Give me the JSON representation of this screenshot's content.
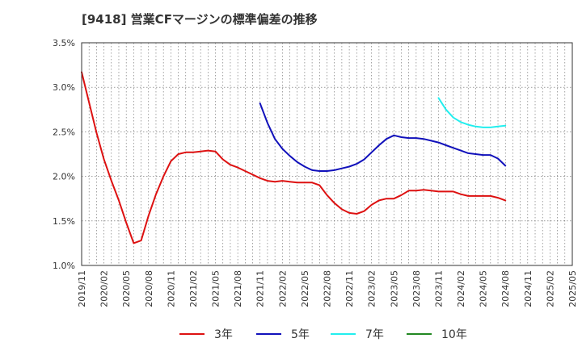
{
  "chart_data": {
    "type": "line",
    "title": "[9418]  営業CFマージンの標準偏差の推移",
    "xlabel": "",
    "ylabel": "",
    "ylim": [
      1.0,
      3.5
    ],
    "yticks": [
      1.0,
      1.5,
      2.0,
      2.5,
      3.0,
      3.5
    ],
    "ytick_labels": [
      "1.0%",
      "1.5%",
      "2.0%",
      "2.5%",
      "3.0%",
      "3.5%"
    ],
    "x_range": [
      "2019/11",
      "2025/05"
    ],
    "xtick_labels": [
      "2019/11",
      "2020/02",
      "2020/05",
      "2020/08",
      "2020/11",
      "2021/02",
      "2021/05",
      "2021/08",
      "2021/11",
      "2022/02",
      "2022/05",
      "2022/08",
      "2022/11",
      "2023/02",
      "2023/05",
      "2023/08",
      "2023/11",
      "2024/02",
      "2024/05",
      "2024/08",
      "2024/11",
      "2025/02",
      "2025/05"
    ],
    "grid": true,
    "legend_position": "bottom",
    "series": [
      {
        "name": "3年",
        "color": "#dd1111",
        "x": [
          "2019/11",
          "2019/12",
          "2020/01",
          "2020/02",
          "2020/03",
          "2020/04",
          "2020/05",
          "2020/06",
          "2020/07",
          "2020/08",
          "2020/09",
          "2020/10",
          "2020/11",
          "2020/12",
          "2021/01",
          "2021/02",
          "2021/03",
          "2021/04",
          "2021/05",
          "2021/06",
          "2021/07",
          "2021/08",
          "2021/09",
          "2021/10",
          "2021/11",
          "2021/12",
          "2022/01",
          "2022/02",
          "2022/03",
          "2022/04",
          "2022/05",
          "2022/06",
          "2022/07",
          "2022/08",
          "2022/09",
          "2022/10",
          "2022/11",
          "2022/12",
          "2023/01",
          "2023/02",
          "2023/03",
          "2023/04",
          "2023/05",
          "2023/06",
          "2023/07",
          "2023/08",
          "2023/09",
          "2023/10",
          "2023/11",
          "2023/12",
          "2024/01",
          "2024/02",
          "2024/03",
          "2024/04",
          "2024/05",
          "2024/06",
          "2024/07",
          "2024/08"
        ],
        "values": [
          3.17,
          2.83,
          2.49,
          2.19,
          1.95,
          1.73,
          1.48,
          1.25,
          1.28,
          1.56,
          1.8,
          2.0,
          2.17,
          2.25,
          2.27,
          2.27,
          2.28,
          2.29,
          2.28,
          2.19,
          2.13,
          2.1,
          2.06,
          2.02,
          1.98,
          1.95,
          1.94,
          1.95,
          1.94,
          1.93,
          1.93,
          1.93,
          1.9,
          1.79,
          1.7,
          1.63,
          1.59,
          1.58,
          1.61,
          1.68,
          1.73,
          1.75,
          1.75,
          1.79,
          1.84,
          1.84,
          1.85,
          1.84,
          1.83,
          1.83,
          1.83,
          1.8,
          1.78,
          1.78,
          1.78,
          1.78,
          1.76,
          1.73
        ]
      },
      {
        "name": "5年",
        "color": "#1111bb",
        "x": [
          "2021/11",
          "2021/12",
          "2022/01",
          "2022/02",
          "2022/03",
          "2022/04",
          "2022/05",
          "2022/06",
          "2022/07",
          "2022/08",
          "2022/09",
          "2022/10",
          "2022/11",
          "2022/12",
          "2023/01",
          "2023/02",
          "2023/03",
          "2023/04",
          "2023/05",
          "2023/06",
          "2023/07",
          "2023/08",
          "2023/09",
          "2023/10",
          "2023/11",
          "2023/12",
          "2024/01",
          "2024/02",
          "2024/03",
          "2024/04",
          "2024/05",
          "2024/06",
          "2024/07",
          "2024/08"
        ],
        "values": [
          2.82,
          2.6,
          2.42,
          2.31,
          2.23,
          2.16,
          2.11,
          2.07,
          2.06,
          2.06,
          2.07,
          2.09,
          2.11,
          2.14,
          2.19,
          2.27,
          2.35,
          2.42,
          2.46,
          2.44,
          2.43,
          2.43,
          2.42,
          2.4,
          2.38,
          2.35,
          2.32,
          2.29,
          2.26,
          2.25,
          2.24,
          2.24,
          2.2,
          2.12
        ]
      },
      {
        "name": "7年",
        "color": "#22eeee",
        "x": [
          "2023/11",
          "2023/12",
          "2024/01",
          "2024/02",
          "2024/03",
          "2024/04",
          "2024/05",
          "2024/06",
          "2024/07",
          "2024/08"
        ],
        "values": [
          2.88,
          2.75,
          2.66,
          2.61,
          2.58,
          2.56,
          2.55,
          2.55,
          2.56,
          2.57
        ]
      },
      {
        "name": "10年",
        "color": "#228822",
        "x": [],
        "values": []
      }
    ]
  }
}
